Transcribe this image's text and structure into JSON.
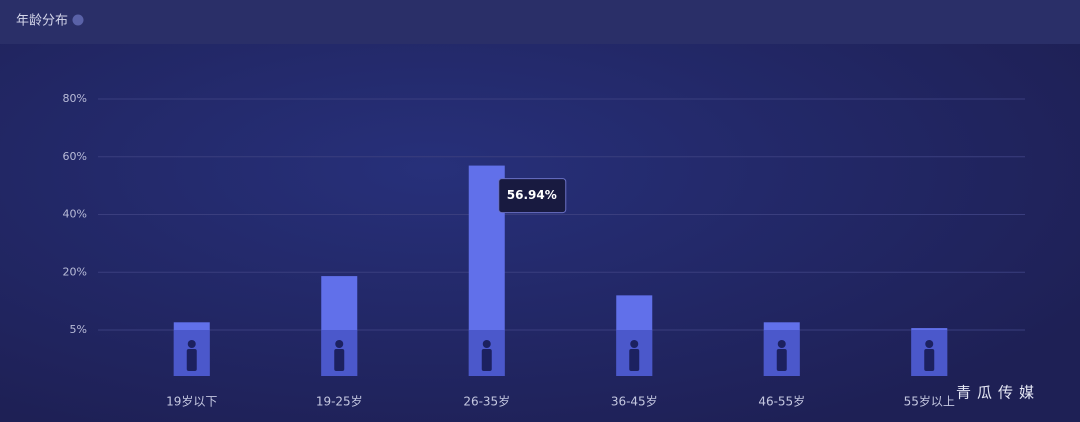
{
  "chart_data": {
    "type": "bar",
    "title": "年龄分布",
    "categories": [
      "19岁以下",
      "19-25岁",
      "26-35岁",
      "36-45岁",
      "46-55岁",
      "55岁以上"
    ],
    "values": [
      7,
      19,
      56.94,
      14,
      7,
      5.5
    ],
    "value_labels": [
      null,
      null,
      "56.94%",
      null,
      null,
      null
    ],
    "color": "#6170ea",
    "ylim": [
      0,
      80
    ],
    "yticks": [
      {
        "value": 5,
        "label": "5%"
      },
      {
        "value": 20,
        "label": "20%"
      },
      {
        "value": 40,
        "label": "40%"
      },
      {
        "value": 60,
        "label": "60%"
      },
      {
        "value": 80,
        "label": "80%"
      }
    ],
    "grid": true,
    "watermark": "青瓜传媒"
  }
}
